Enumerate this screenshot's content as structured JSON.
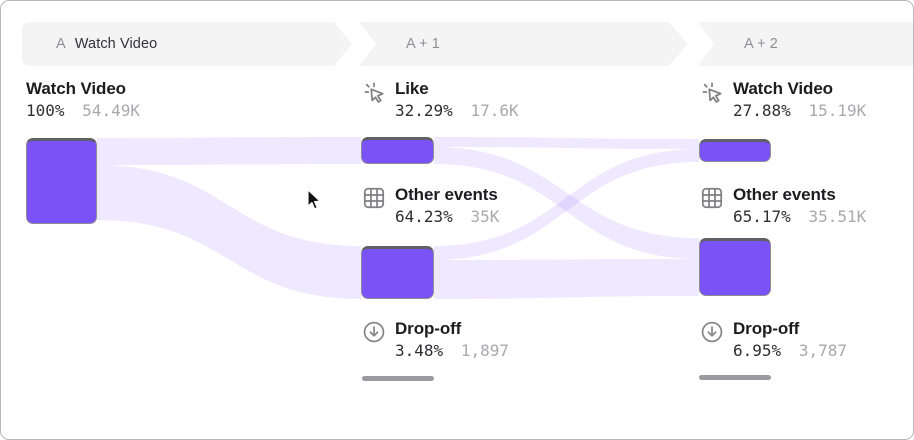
{
  "header": {
    "steps": [
      {
        "prefix": "A",
        "label": "Watch Video"
      },
      {
        "prefix": "",
        "label": "A + 1"
      },
      {
        "prefix": "",
        "label": "A + 2"
      }
    ]
  },
  "columns": [
    {
      "events": [
        {
          "name": "Watch Video",
          "icon": "none",
          "percent": "100%",
          "count": "54.49K"
        }
      ]
    },
    {
      "events": [
        {
          "name": "Like",
          "icon": "click-icon",
          "percent": "32.29%",
          "count": "17.6K"
        },
        {
          "name": "Other events",
          "icon": "grid-icon",
          "percent": "64.23%",
          "count": "35K"
        },
        {
          "name": "Drop-off",
          "icon": "dropoff-icon",
          "percent": "3.48%",
          "count": "1,897"
        }
      ]
    },
    {
      "events": [
        {
          "name": "Watch Video",
          "icon": "click-icon",
          "percent": "27.88%",
          "count": "15.19K"
        },
        {
          "name": "Other events",
          "icon": "grid-icon",
          "percent": "65.17%",
          "count": "35.51K"
        },
        {
          "name": "Drop-off",
          "icon": "dropoff-icon",
          "percent": "6.95%",
          "count": "3,787"
        }
      ]
    }
  ],
  "colors": {
    "accent": "#7b52f7",
    "flow": "#7a52f5",
    "node_top_border": "#606067",
    "dropoff_bar": "#9a9aa0",
    "band_bg": "#f4f4f5",
    "text_dark": "#1c1c21",
    "text_gray": "#a8a8ae",
    "header_gray": "#8f8f95"
  },
  "chart_data": {
    "type": "sankey",
    "title": "Event journey from Watch Video (A) through steps A + 1 and A + 2",
    "steps": [
      "A — Watch Video",
      "A + 1",
      "A + 2"
    ],
    "nodes": [
      {
        "step": 0,
        "name": "Watch Video",
        "percent": 100,
        "count": 54490,
        "count_label": "54.49K"
      },
      {
        "step": 1,
        "name": "Like",
        "percent": 32.29,
        "count": 17600,
        "count_label": "17.6K"
      },
      {
        "step": 1,
        "name": "Other events",
        "percent": 64.23,
        "count": 35000,
        "count_label": "35K"
      },
      {
        "step": 1,
        "name": "Drop-off",
        "percent": 3.48,
        "count": 1897,
        "count_label": "1,897"
      },
      {
        "step": 2,
        "name": "Watch Video",
        "percent": 27.88,
        "count": 15190,
        "count_label": "15.19K"
      },
      {
        "step": 2,
        "name": "Other events",
        "percent": 65.17,
        "count": 35510,
        "count_label": "35.51K"
      },
      {
        "step": 2,
        "name": "Drop-off",
        "percent": 6.95,
        "count": 3787,
        "count_label": "3,787"
      }
    ],
    "links": [
      {
        "source": "A:Watch Video",
        "target": "A+1:Like",
        "value": 17600
      },
      {
        "source": "A:Watch Video",
        "target": "A+1:Other events",
        "value": 35000
      },
      {
        "source": "A:Watch Video",
        "target": "A+1:Drop-off",
        "value": 1897
      },
      {
        "source": "A+1:Like",
        "target": "A+2:Watch Video",
        "value_estimated": 6300
      },
      {
        "source": "A+1:Like",
        "target": "A+2:Other events",
        "value_estimated": 11300
      },
      {
        "source": "A+1:Other events",
        "target": "A+2:Watch Video",
        "value_estimated": 8890
      },
      {
        "source": "A+1:Other events",
        "target": "A+2:Other events",
        "value_estimated": 24200
      }
    ],
    "legend_position": "none",
    "grid": false
  }
}
